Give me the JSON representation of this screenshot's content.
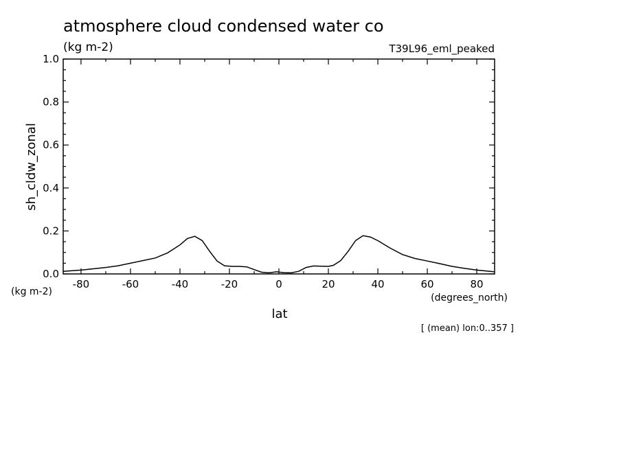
{
  "header": {
    "title": "atmosphere cloud condensed water co",
    "units": "(kg m-2)",
    "dataset": "T39L96_eml_peaked"
  },
  "footer": {
    "mean_note": "[ (mean) lon:0..357 ]"
  },
  "chart_data": {
    "type": "line",
    "title": "atmosphere cloud condensed water co",
    "xlabel": "lat",
    "xunits": "(degrees_north)",
    "ylabel": "sh_cldw_zonal",
    "yunits": "(kg m-2)",
    "xlim": [
      -87.2,
      87.2
    ],
    "ylim": [
      0.0,
      1.0
    ],
    "xticks": [
      -80,
      -60,
      -40,
      -20,
      0,
      20,
      40,
      60,
      80
    ],
    "xtick_labels": [
      "-80",
      "-60",
      "-40",
      "-20",
      "0",
      "20",
      "40",
      "60",
      "80"
    ],
    "yticks": [
      0.0,
      0.2,
      0.4,
      0.6,
      0.8,
      1.0
    ],
    "ytick_labels": [
      "0.0",
      "0.2",
      "0.4",
      "0.6",
      "0.8",
      "1.0"
    ],
    "grid": false,
    "series": [
      {
        "color": "#000000",
        "x": [
          -87.2,
          -80,
          -75,
          -70,
          -65,
          -60,
          -55,
          -50,
          -45,
          -40,
          -37,
          -34,
          -31,
          -28,
          -25,
          -22,
          -19,
          -16,
          -13,
          -10,
          -7,
          -4,
          -1,
          2,
          5,
          8,
          11,
          14,
          17,
          20,
          22,
          25,
          28,
          31,
          34,
          37,
          40,
          45,
          50,
          55,
          60,
          65,
          70,
          75,
          80,
          87.2
        ],
        "y": [
          0.012,
          0.018,
          0.024,
          0.03,
          0.038,
          0.05,
          0.062,
          0.074,
          0.098,
          0.135,
          0.165,
          0.175,
          0.155,
          0.105,
          0.06,
          0.038,
          0.035,
          0.035,
          0.033,
          0.02,
          0.008,
          0.005,
          0.01,
          0.006,
          0.005,
          0.012,
          0.03,
          0.037,
          0.036,
          0.035,
          0.04,
          0.062,
          0.105,
          0.155,
          0.178,
          0.172,
          0.155,
          0.12,
          0.09,
          0.072,
          0.06,
          0.048,
          0.035,
          0.026,
          0.018,
          0.01
        ]
      }
    ]
  }
}
